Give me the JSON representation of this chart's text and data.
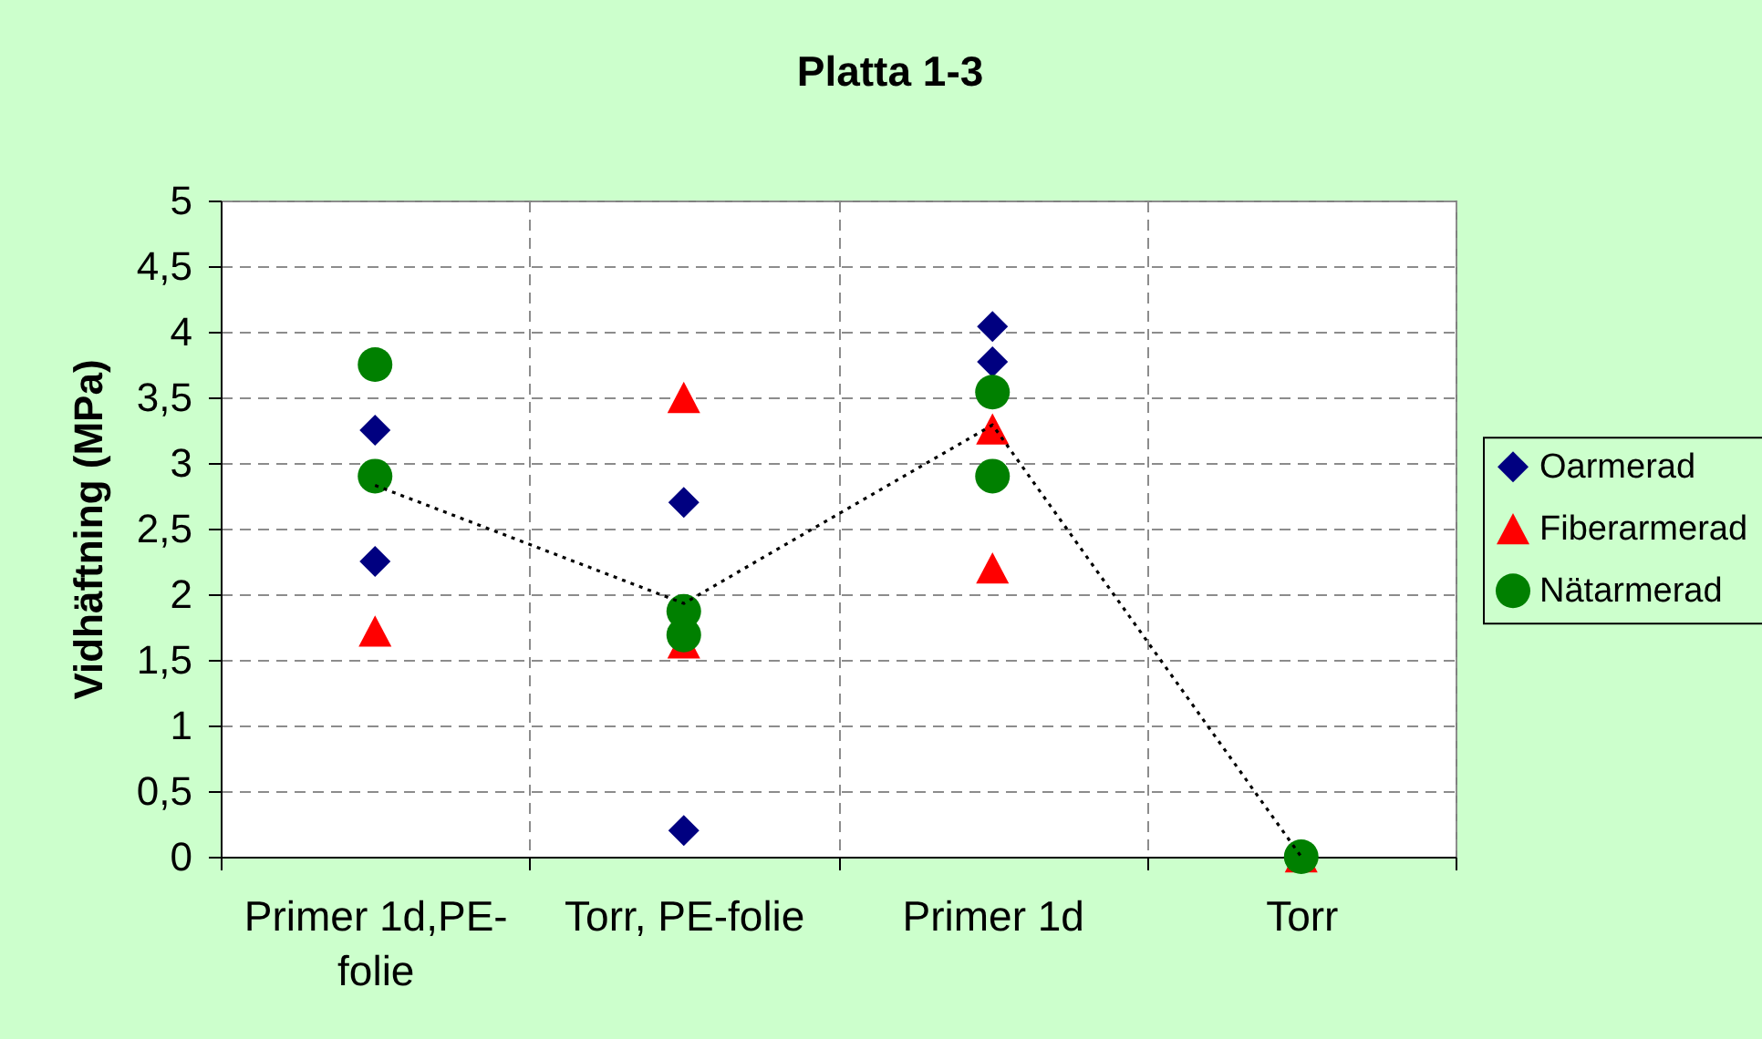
{
  "chart_data": {
    "type": "scatter",
    "title": "Platta 1-3",
    "ylabel": "Vidhäftning (MPa)",
    "categories": [
      "Primer 1d,PE-folie",
      "Torr, PE-folie",
      "Primer 1d",
      "Torr"
    ],
    "series": [
      {
        "name": "Oarmerad",
        "color": "#000080",
        "marker": "diamond",
        "x": [
          "Primer 1d,PE-folie",
          "Primer 1d,PE-folie",
          "Torr, PE-folie",
          "Torr, PE-folie",
          "Primer 1d",
          "Primer 1d",
          "Torr"
        ],
        "values": [
          3.25,
          2.25,
          2.7,
          0.2,
          4.04,
          3.77,
          null
        ]
      },
      {
        "name": "Fiberarmerad",
        "color": "#ff0000",
        "marker": "triangle",
        "x": [
          "Primer 1d,PE-folie",
          "Primer 1d,PE-folie",
          "Torr, PE-folie",
          "Torr, PE-folie",
          "Primer 1d",
          "Primer 1d",
          "Torr"
        ],
        "values": [
          null,
          1.72,
          3.5,
          1.63,
          3.26,
          2.2,
          0
        ]
      },
      {
        "name": "Nätarmerad",
        "color": "#008000",
        "marker": "circle",
        "x": [
          "Primer 1d,PE-folie",
          "Primer 1d,PE-folie",
          "Torr, PE-folie",
          "Torr, PE-folie",
          "Primer 1d",
          "Primer 1d",
          "Torr"
        ],
        "values": [
          3.75,
          2.9,
          1.87,
          1.69,
          3.54,
          2.9,
          0
        ]
      },
      {
        "type": "line",
        "color": "#000000",
        "line_style": "dotted",
        "marker": "none",
        "values": [
          2.83,
          1.93,
          3.29,
          0
        ]
      }
    ],
    "ylim": [
      0,
      5
    ],
    "yticks": [
      0,
      {
        "value": 0.5,
        "label": "0,5"
      },
      1,
      {
        "value": 1.5,
        "label": "1,5"
      },
      2,
      {
        "value": 2.5,
        "label": "2,5"
      },
      3,
      {
        "value": 3.5,
        "label": "3,5"
      },
      4,
      {
        "value": 4.5,
        "label": "4,5"
      },
      5
    ],
    "grid": true,
    "legend": "right"
  }
}
